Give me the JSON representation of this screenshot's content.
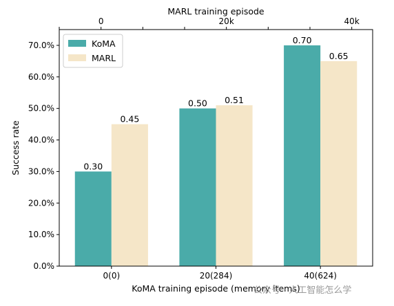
{
  "chart_data": {
    "type": "bar",
    "categories": [
      "0(0)",
      "20(284)",
      "40(624)"
    ],
    "series": [
      {
        "name": "KoMA",
        "values": [
          0.3,
          0.5,
          0.7
        ],
        "color": "#4aaba9"
      },
      {
        "name": "MARL",
        "values": [
          0.45,
          0.51,
          0.65
        ],
        "color": "#f5e6c8"
      }
    ],
    "data_labels": {
      "KoMA": [
        "0.30",
        "0.50",
        "0.70"
      ],
      "MARL": [
        "0.45",
        "0.51",
        "0.65"
      ]
    },
    "xlabel": "KoMA training episode (memory items)",
    "top_xlabel": "MARL training episode",
    "top_tick_labels": [
      "0",
      "20k",
      "40k"
    ],
    "ylabel": "Success rate",
    "ylim": [
      0,
      0.75
    ],
    "yticks": [
      0.0,
      0.1,
      0.2,
      0.3,
      0.4,
      0.5,
      0.6,
      0.7
    ],
    "ytick_labels": [
      "0.0%",
      "10.0%",
      "20.0%",
      "30.0%",
      "40.0%",
      "50.0%",
      "60.0%",
      "70.0%"
    ],
    "xlim": [
      -0.5,
      2.5
    ],
    "top_ticks": [
      -0.5,
      -0.1,
      0.3,
      0.7,
      1.1,
      1.5,
      1.9,
      2.3
    ],
    "top_tick_label_at": [
      -0.1,
      1.1,
      2.3
    ],
    "grid": false,
    "legend": "top-left"
  },
  "watermark": "公众号 · 人工智能怎么学"
}
